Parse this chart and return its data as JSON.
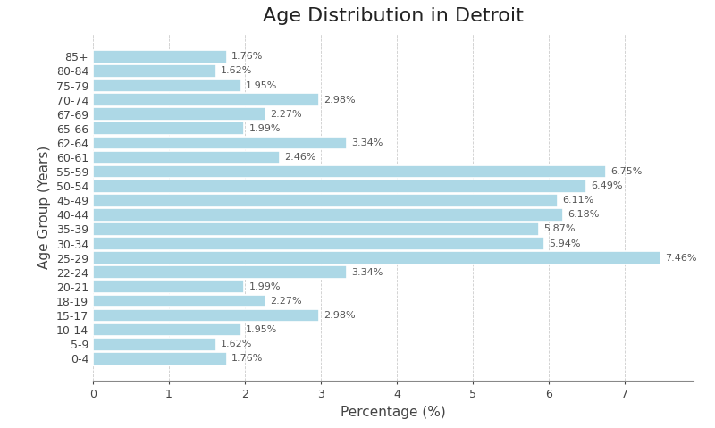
{
  "title": "Age Distribution in Detroit",
  "xlabel": "Percentage (%)",
  "ylabel": "Age Group (Years)",
  "categories": [
    "0-4",
    "5-9",
    "10-14",
    "15-17",
    "18-19",
    "20-21",
    "22-24",
    "25-29",
    "30-34",
    "35-39",
    "40-44",
    "45-49",
    "50-54",
    "55-59",
    "60-61",
    "62-64",
    "65-66",
    "67-69",
    "70-74",
    "75-79",
    "80-84",
    "85+"
  ],
  "values": [
    1.76,
    1.62,
    1.95,
    2.98,
    2.27,
    1.99,
    3.34,
    7.46,
    5.94,
    5.87,
    6.18,
    6.11,
    6.49,
    6.75,
    2.46,
    3.34,
    1.99,
    2.27,
    2.98,
    1.95,
    1.62,
    1.76
  ],
  "bar_color": "#add8e6",
  "bar_edgecolor": "white",
  "background_color": "#ffffff",
  "grid_color": "#cccccc",
  "title_fontsize": 16,
  "label_fontsize": 11,
  "tick_fontsize": 9,
  "annotation_fontsize": 8,
  "xlim": [
    0,
    7.9
  ],
  "xticks": [
    0,
    1,
    2,
    3,
    4,
    5,
    6,
    7
  ]
}
